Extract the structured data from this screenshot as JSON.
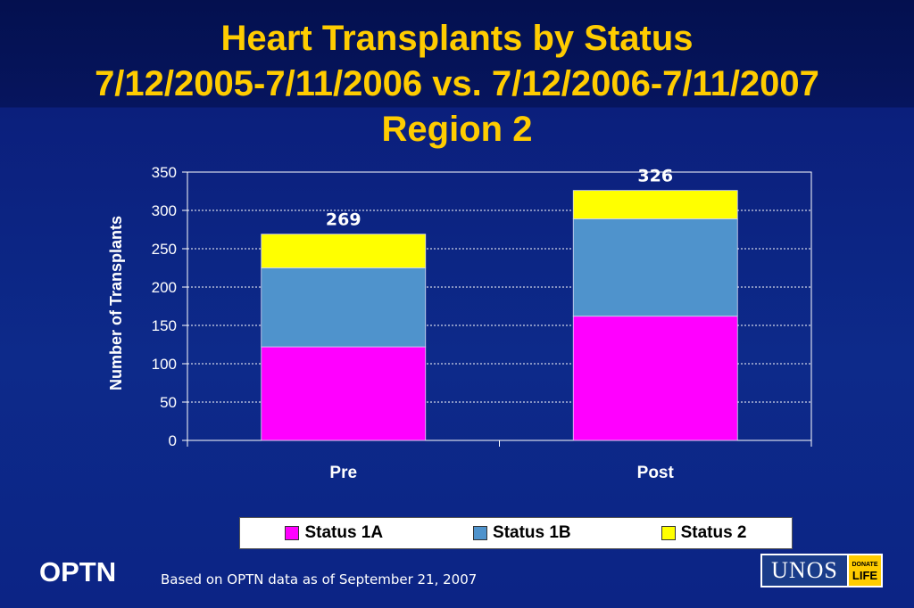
{
  "title": {
    "line1": "Heart Transplants by Status",
    "line2": "7/12/2005-7/11/2006 vs. 7/12/2006-7/11/2007",
    "line3": "Region 2"
  },
  "chart_data": {
    "type": "bar",
    "stacked": true,
    "categories": [
      "Pre",
      "Post"
    ],
    "series": [
      {
        "name": "Status 1A",
        "values": [
          122,
          162
        ],
        "color": "#ff00ff"
      },
      {
        "name": "Status 1B",
        "values": [
          103,
          127
        ],
        "color": "#4f93cc"
      },
      {
        "name": "Status 2",
        "values": [
          44,
          37
        ],
        "color": "#ffff00"
      }
    ],
    "totals": [
      "269",
      "326"
    ],
    "ylabel": "Number of Transplants",
    "ylim": [
      0,
      350
    ],
    "yticks": [
      "0",
      "50",
      "100",
      "150",
      "200",
      "250",
      "300",
      "350"
    ],
    "grid": true,
    "legend_position": "bottom"
  },
  "footer": {
    "brand": "OPTN",
    "note": "Based on OPTN data as of  September  21, 2007",
    "logo_text": "UNOS",
    "logo_badge_top": "DONATE",
    "logo_badge_bottom": "LIFE",
    "logo_icon": "unos-donate-life-logo"
  }
}
